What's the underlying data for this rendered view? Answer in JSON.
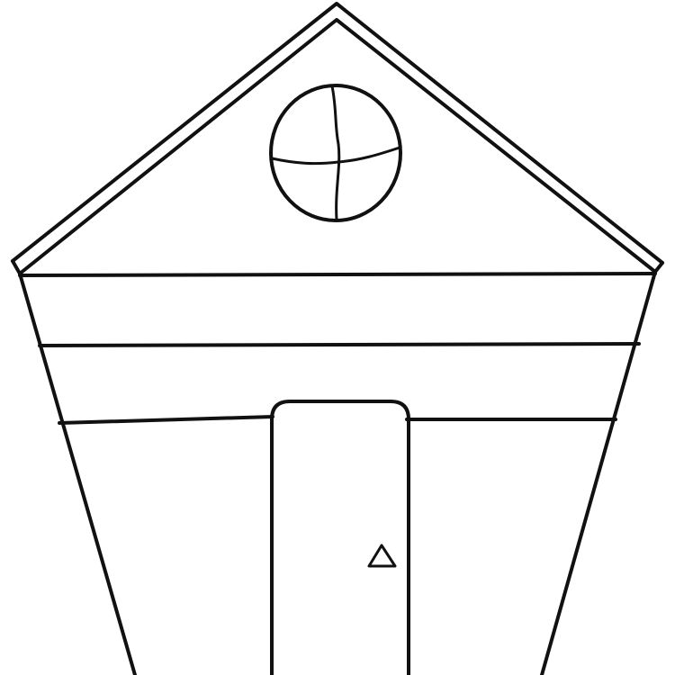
{
  "drawing": {
    "subject": "house-line-drawing",
    "colors": {
      "background": "#ffffff",
      "ink": "#111111"
    }
  }
}
